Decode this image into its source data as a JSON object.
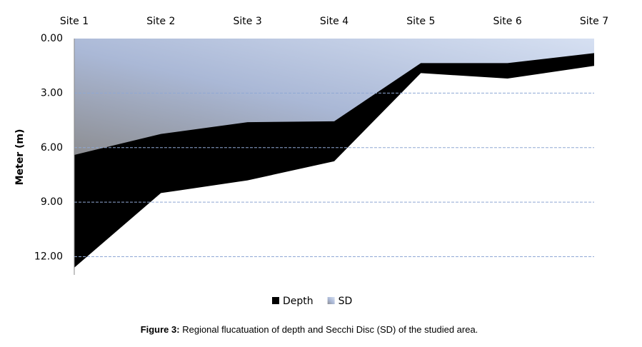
{
  "chart_data": {
    "type": "area",
    "y_label": "Meter (m)",
    "categories": [
      "Site 1",
      "Site 2",
      "Site 3",
      "Site 4",
      "Site 5",
      "Site 6",
      "Site 7"
    ],
    "series": [
      {
        "name": "Depth",
        "color": "#000000",
        "values": [
          12.6,
          8.5,
          7.8,
          6.75,
          1.9,
          2.2,
          1.5
        ]
      },
      {
        "name": "SD",
        "color": "#b4c7e7",
        "values": [
          6.4,
          5.25,
          4.6,
          4.55,
          1.35,
          1.35,
          0.8
        ]
      }
    ],
    "ylim": [
      0,
      13
    ],
    "y_inverted": true,
    "yticks": [
      {
        "value": 0,
        "label": "0.00"
      },
      {
        "value": 3,
        "label": "3.00"
      },
      {
        "value": 6,
        "label": "6.00"
      },
      {
        "value": 9,
        "label": "9.00"
      },
      {
        "value": 12,
        "label": "12.00"
      }
    ],
    "grid": true,
    "legend": "bottom"
  },
  "caption": {
    "label": "Figure 3:",
    "text": "Regional flucatuation of depth and Secchi Disc (SD) of the studied area."
  }
}
